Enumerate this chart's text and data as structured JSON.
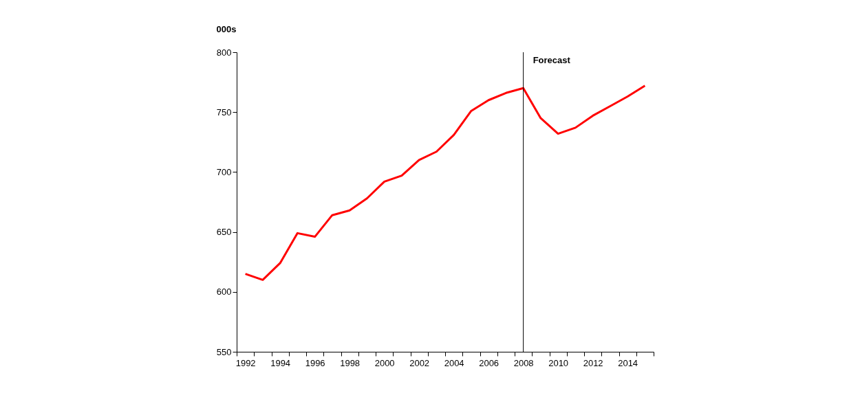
{
  "chart_data": {
    "type": "line",
    "ylabel": "000s",
    "categories": [
      "1992",
      null,
      "1994",
      null,
      "1996",
      null,
      "1998",
      null,
      "2000",
      null,
      "2002",
      null,
      "2004",
      null,
      "2006",
      null,
      "2008",
      null,
      "2010",
      null,
      "2012",
      null,
      "2014",
      null
    ],
    "series": [
      {
        "color": "#ff0000",
        "values": [
          615,
          610,
          624,
          649,
          646,
          664,
          668,
          678,
          692,
          697,
          710,
          717,
          731,
          751,
          760,
          766,
          770,
          745,
          732,
          737,
          747,
          755,
          763,
          772
        ]
      }
    ],
    "ylim": [
      550,
      800
    ],
    "yticks": [
      550,
      600,
      650,
      700,
      750,
      800
    ],
    "ref_lines": [
      {
        "axis": "x",
        "value": "2008",
        "label": "Forecast",
        "color": "#000000"
      }
    ],
    "grid": false,
    "marker": "none"
  }
}
